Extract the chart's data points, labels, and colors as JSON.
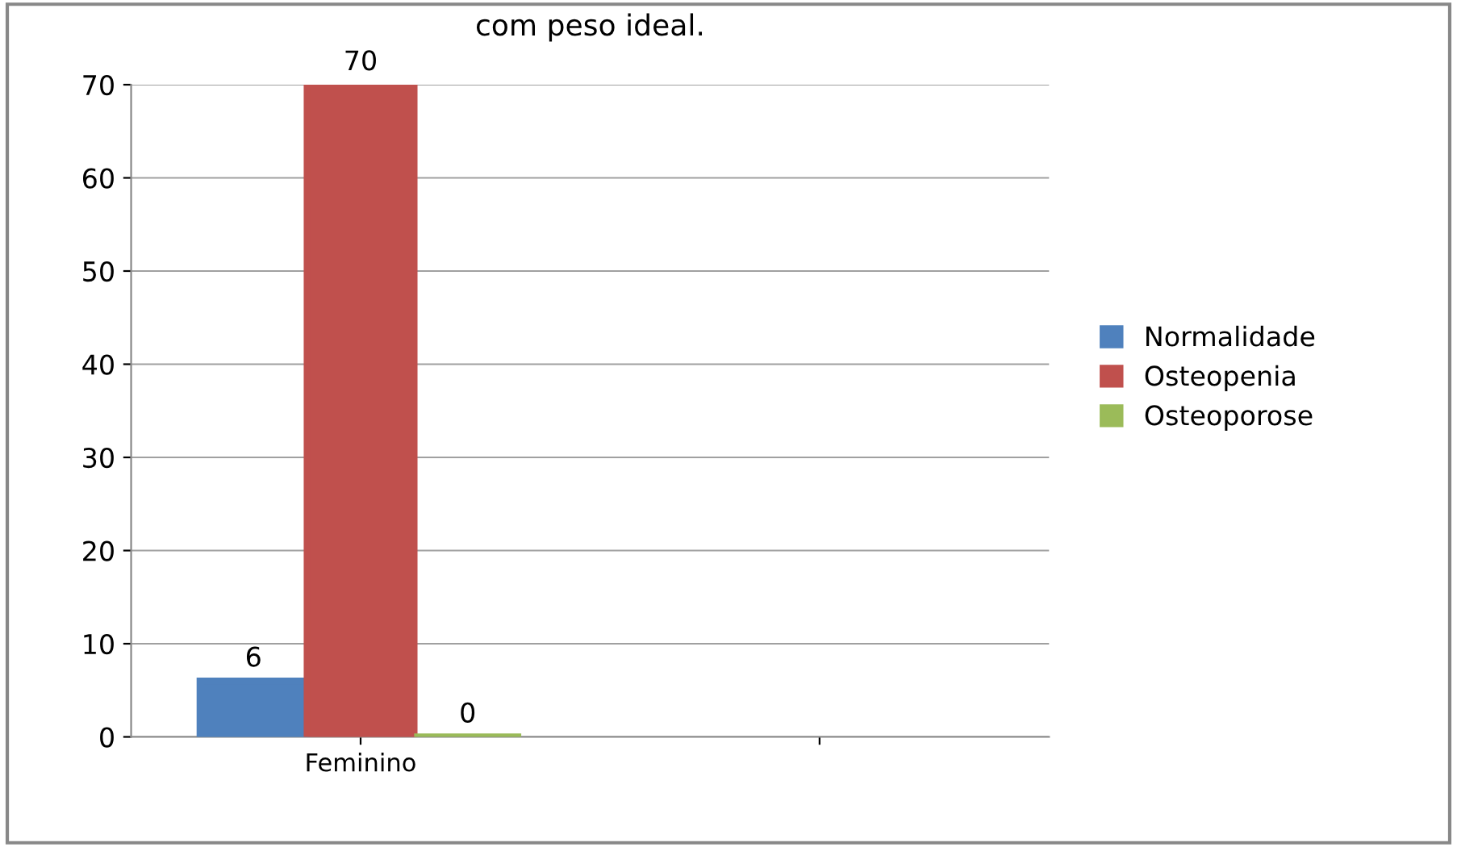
{
  "chart_data": {
    "type": "bar",
    "title": "com peso ideal.",
    "categories": [
      "Feminino",
      null
    ],
    "series": [
      {
        "name": "Normalidade",
        "color": "#4f81bd",
        "values": [
          6,
          null
        ]
      },
      {
        "name": "Osteopenia",
        "color": "#c0504d",
        "values": [
          70,
          null
        ]
      },
      {
        "name": "Osteoporose",
        "color": "#9bbb59",
        "values": [
          0,
          null
        ]
      }
    ],
    "ylim": [
      0,
      70
    ],
    "yticks": [
      0,
      10,
      20,
      30,
      40,
      50,
      60,
      70
    ],
    "grid": "y",
    "legend": "right",
    "data_labels": true
  }
}
